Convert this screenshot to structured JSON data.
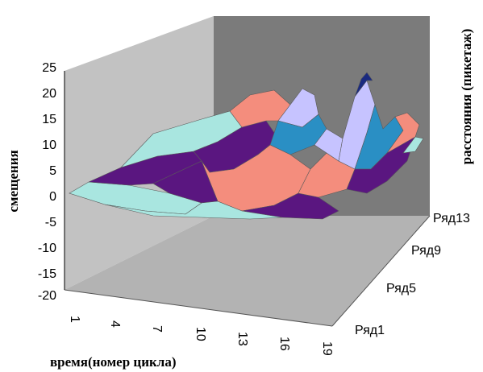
{
  "chart_data": {
    "type": "surface",
    "ylabel": "смещения",
    "xlabel": "время(номер цикла)",
    "zlabel": "расстояния (пикетаж)",
    "ylim": [
      -20,
      25
    ],
    "yticks": [
      "25",
      "20",
      "15",
      "10",
      "5",
      "0",
      "-5",
      "-10",
      "-15",
      "-20"
    ],
    "xticks": [
      "1",
      "4",
      "7",
      "10",
      "13",
      "16",
      "19"
    ],
    "zticks": [
      "Ряд1",
      "Ряд5",
      "Ряд9",
      "Ряд13"
    ],
    "legend": "none",
    "color_bands": [
      {
        "range": [
          -5,
          0
        ],
        "color": "#e8e6a0"
      },
      {
        "range": [
          0,
          5
        ],
        "color": "#a9e6e0"
      },
      {
        "range": [
          5,
          10
        ],
        "color": "#5a1680"
      },
      {
        "range": [
          10,
          15
        ],
        "color": "#f48d7d"
      },
      {
        "range": [
          15,
          20
        ],
        "color": "#2a8fc4"
      },
      {
        "range": [
          20,
          25
        ],
        "color": "#c6c3ff"
      },
      {
        "range": [
          25,
          30
        ],
        "color": "#1a2a80"
      }
    ]
  }
}
